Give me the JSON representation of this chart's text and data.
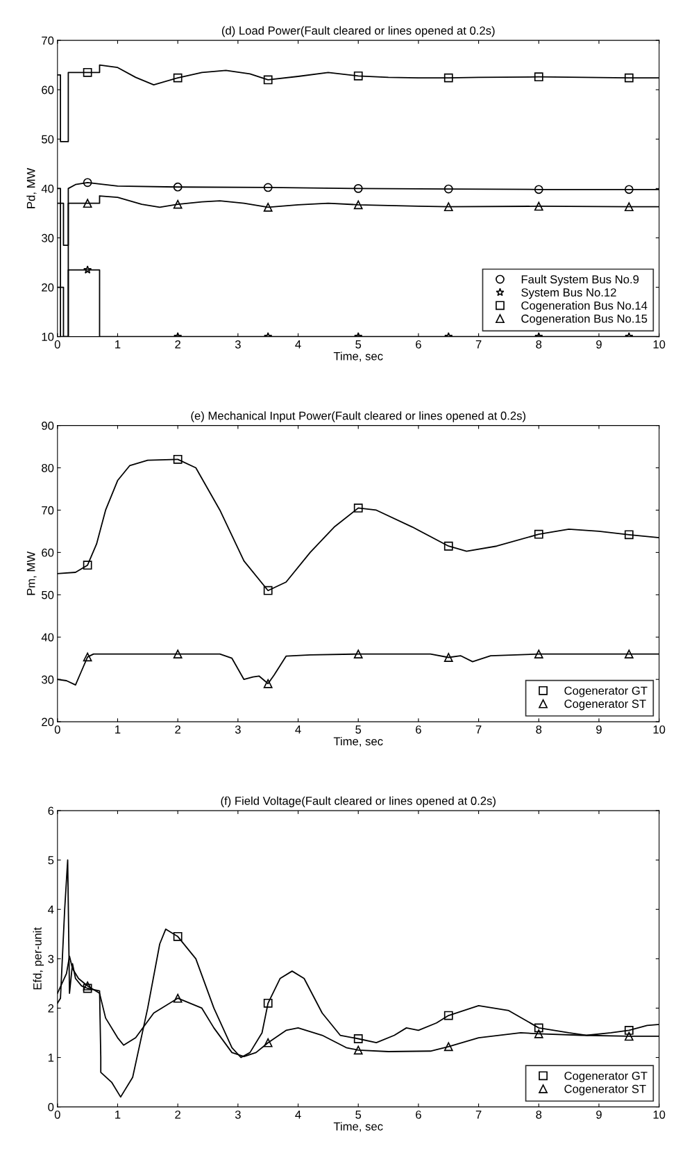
{
  "chart_data": [
    {
      "type": "line",
      "title": "(d) Load Power(Fault cleared or lines opened at 0.2s)",
      "xlabel": "Time, sec",
      "ylabel": "Pd, MW",
      "xlim": [
        0,
        10
      ],
      "ylim": [
        10,
        70
      ],
      "xticks": [
        0,
        1,
        2,
        3,
        4,
        5,
        6,
        7,
        8,
        9,
        10
      ],
      "yticks": [
        10,
        20,
        30,
        40,
        50,
        60,
        70
      ],
      "grid": false,
      "legend": "bottom right",
      "line_style": "solid",
      "series": [
        {
          "color": "#000000",
          "x": [
            0,
            0.05,
            0.05,
            0.18,
            0.18,
            0.3,
            0.5,
            1,
            2,
            3.5,
            5,
            6.5,
            8,
            9.5,
            10
          ],
          "values": [
            40,
            40,
            10,
            10,
            40,
            40.8,
            41.2,
            40.5,
            40.3,
            40.2,
            40,
            39.9,
            39.8,
            39.8,
            39.8
          ]
        },
        {
          "color": "#000000",
          "x": [
            0,
            0.1,
            0.1,
            0.18,
            0.18,
            0.5,
            0.7,
            0.7,
            2,
            3.5,
            5,
            6.5,
            8,
            9.5,
            10
          ],
          "values": [
            20,
            20,
            10,
            10,
            23.5,
            23.5,
            23.5,
            10,
            10,
            10,
            10,
            10,
            10,
            10,
            10
          ]
        },
        {
          "color": "#000000",
          "x": [
            0,
            0.05,
            0.05,
            0.18,
            0.18,
            0.5,
            0.7,
            0.7,
            1,
            1.3,
            1.6,
            2,
            2.4,
            2.8,
            3.2,
            3.5,
            4,
            4.5,
            5,
            5.5,
            6,
            6.5,
            7,
            8,
            9.5,
            10
          ],
          "values": [
            63,
            63,
            49.5,
            49.5,
            63.5,
            63.5,
            63.5,
            65,
            64.5,
            62.5,
            61,
            62.4,
            63.5,
            63.9,
            63.2,
            62,
            62.7,
            63.5,
            62.8,
            62.5,
            62.4,
            62.4,
            62.5,
            62.6,
            62.4,
            62.4
          ]
        },
        {
          "color": "#000000",
          "x": [
            0,
            0.1,
            0.1,
            0.18,
            0.18,
            0.5,
            0.7,
            0.7,
            1,
            1.4,
            1.7,
            2,
            2.4,
            2.7,
            3.1,
            3.5,
            4,
            4.5,
            5,
            6,
            6.5,
            8,
            9.5,
            10
          ],
          "values": [
            37,
            37,
            28.5,
            28.5,
            37,
            37,
            37,
            38.5,
            38.2,
            36.8,
            36.2,
            36.8,
            37.3,
            37.5,
            37,
            36.2,
            36.7,
            37,
            36.7,
            36.4,
            36.3,
            36.4,
            36.3,
            36.3
          ]
        },
        {
          "type": "scatter",
          "name": "Fault System Bus No.9",
          "color": "#000000",
          "marker": "circle",
          "x": [
            0.5,
            2,
            3.5,
            5,
            6.5,
            8,
            9.5
          ],
          "values": [
            41.2,
            40.3,
            40.2,
            40,
            39.9,
            39.8,
            39.8
          ]
        },
        {
          "type": "scatter",
          "name": "System Bus No.12",
          "color": "#000000",
          "marker": "star",
          "x": [
            0.5,
            2,
            3.5,
            5,
            6.5,
            8,
            9.5
          ],
          "values": [
            23.5,
            10,
            10,
            10,
            10,
            10,
            10
          ]
        },
        {
          "type": "scatter",
          "name": "Cogeneration Bus No.14",
          "color": "#000000",
          "marker": "square",
          "x": [
            0.5,
            2,
            3.5,
            5,
            6.5,
            8,
            9.5
          ],
          "values": [
            63.5,
            62.4,
            62,
            62.8,
            62.4,
            62.6,
            62.4
          ]
        },
        {
          "type": "scatter",
          "name": "Cogeneration Bus No.15",
          "color": "#000000",
          "marker": "triangle",
          "x": [
            0.5,
            2,
            3.5,
            5,
            6.5,
            8,
            9.5
          ],
          "values": [
            37,
            36.8,
            36.2,
            36.7,
            36.3,
            36.4,
            36.3
          ]
        }
      ]
    },
    {
      "type": "line",
      "title": "(e) Mechanical Input Power(Fault cleared or lines opened at 0.2s)",
      "xlabel": "Time, sec",
      "ylabel": "Pm, MW",
      "xlim": [
        0,
        10
      ],
      "ylim": [
        20,
        90
      ],
      "xticks": [
        0,
        1,
        2,
        3,
        4,
        5,
        6,
        7,
        8,
        9,
        10
      ],
      "yticks": [
        20,
        30,
        40,
        50,
        60,
        70,
        80,
        90
      ],
      "grid": false,
      "legend": "bottom right",
      "line_style": "solid",
      "series": [
        {
          "color": "#000000",
          "x": [
            0,
            0.3,
            0.5,
            0.65,
            0.8,
            1,
            1.2,
            1.5,
            2,
            2.3,
            2.7,
            3.1,
            3.5,
            3.8,
            4.2,
            4.6,
            5,
            5.3,
            5.9,
            6.5,
            6.8,
            7.3,
            8,
            8.5,
            9,
            9.5,
            10
          ],
          "values": [
            55,
            55.3,
            57,
            62,
            70,
            77,
            80.5,
            81.8,
            82,
            80,
            70,
            58,
            51,
            53,
            60,
            66,
            70.5,
            70,
            66,
            61.5,
            60.3,
            61.5,
            64.3,
            65.5,
            65,
            64.2,
            63.5
          ]
        },
        {
          "color": "#000000",
          "x": [
            0,
            0.15,
            0.3,
            0.4,
            0.5,
            0.6,
            2,
            2.7,
            2.9,
            3.1,
            3.25,
            3.35,
            3.5,
            3.6,
            3.8,
            4.2,
            5,
            6.2,
            6.5,
            6.7,
            6.9,
            7.2,
            8,
            9.5,
            10
          ],
          "values": [
            30,
            29.7,
            28.7,
            32,
            35.3,
            36,
            36,
            36,
            35,
            30,
            30.6,
            30.8,
            29,
            31,
            35.5,
            35.8,
            36,
            36,
            35.2,
            35.6,
            34.2,
            35.6,
            36,
            36,
            36
          ]
        },
        {
          "type": "scatter",
          "name": "Cogenerator GT",
          "color": "#000000",
          "marker": "square",
          "x": [
            0.5,
            2,
            3.5,
            5,
            6.5,
            8,
            9.5
          ],
          "values": [
            57,
            82,
            51,
            70.5,
            61.5,
            64.3,
            64.2
          ]
        },
        {
          "type": "scatter",
          "name": "Cogenerator ST",
          "color": "#000000",
          "marker": "triangle",
          "x": [
            0.5,
            2,
            3.5,
            5,
            6.5,
            8,
            9.5
          ],
          "values": [
            35.3,
            36,
            29,
            36,
            35.2,
            36,
            36
          ]
        }
      ]
    },
    {
      "type": "line",
      "title": "(f) Field Voltage(Fault cleared or lines opened at 0.2s)",
      "xlabel": "Time, sec",
      "ylabel": "Efd, per-unit",
      "xlim": [
        0,
        10
      ],
      "ylim": [
        0,
        6
      ],
      "xticks": [
        0,
        1,
        2,
        3,
        4,
        5,
        6,
        7,
        8,
        9,
        10
      ],
      "yticks": [
        0,
        1,
        2,
        3,
        4,
        5,
        6
      ],
      "grid": false,
      "legend": "bottom right",
      "line_style": "solid",
      "series": [
        {
          "color": "#000000",
          "x": [
            0,
            0.05,
            0.12,
            0.17,
            0.2,
            0.25,
            0.3,
            0.4,
            0.5,
            0.7,
            0.72,
            0.72,
            0.9,
            1.05,
            1.25,
            1.5,
            1.7,
            1.8,
            2,
            2.3,
            2.6,
            2.9,
            3.05,
            3.2,
            3.4,
            3.5,
            3.7,
            3.9,
            4.1,
            4.4,
            4.7,
            5,
            5.3,
            5.6,
            5.8,
            6,
            6.3,
            6.5,
            7,
            7.5,
            8,
            8.5,
            8.8,
            9.2,
            9.5,
            9.8,
            10
          ],
          "values": [
            2.1,
            2.2,
            4,
            5,
            2.3,
            2.9,
            2.6,
            2.45,
            2.4,
            2.35,
            1,
            0.7,
            0.5,
            0.2,
            0.6,
            2,
            3.3,
            3.6,
            3.45,
            3,
            2,
            1.2,
            1,
            1.1,
            1.5,
            2.1,
            2.6,
            2.75,
            2.6,
            1.9,
            1.45,
            1.38,
            1.3,
            1.45,
            1.6,
            1.55,
            1.7,
            1.85,
            2.05,
            1.95,
            1.6,
            1.5,
            1.45,
            1.5,
            1.55,
            1.65,
            1.67
          ]
        },
        {
          "color": "#000000",
          "x": [
            0,
            0.15,
            0.2,
            0.25,
            0.35,
            0.5,
            0.7,
            0.8,
            1,
            1.1,
            1.3,
            1.6,
            2,
            2.4,
            2.6,
            2.9,
            3.1,
            3.3,
            3.5,
            3.8,
            4,
            4.4,
            4.8,
            5,
            5.5,
            6.2,
            6.5,
            7,
            7.7,
            8,
            8.7,
            9.5,
            10
          ],
          "values": [
            2.3,
            2.7,
            3.05,
            2.8,
            2.6,
            2.45,
            2.3,
            1.8,
            1.4,
            1.25,
            1.4,
            1.9,
            2.2,
            2,
            1.6,
            1.1,
            1.02,
            1.1,
            1.3,
            1.55,
            1.6,
            1.45,
            1.2,
            1.15,
            1.12,
            1.13,
            1.22,
            1.4,
            1.5,
            1.48,
            1.45,
            1.43,
            1.43
          ]
        },
        {
          "type": "scatter",
          "name": "Cogenerator GT",
          "color": "#000000",
          "marker": "square",
          "x": [
            0.5,
            2,
            3.5,
            5,
            6.5,
            8,
            9.5
          ],
          "values": [
            2.4,
            3.45,
            2.1,
            1.38,
            1.85,
            1.6,
            1.55
          ]
        },
        {
          "type": "scatter",
          "name": "Cogenerator ST",
          "color": "#000000",
          "marker": "triangle",
          "x": [
            0.5,
            2,
            3.5,
            5,
            6.5,
            8,
            9.5
          ],
          "values": [
            2.45,
            2.2,
            1.3,
            1.15,
            1.22,
            1.48,
            1.43
          ]
        }
      ]
    }
  ]
}
